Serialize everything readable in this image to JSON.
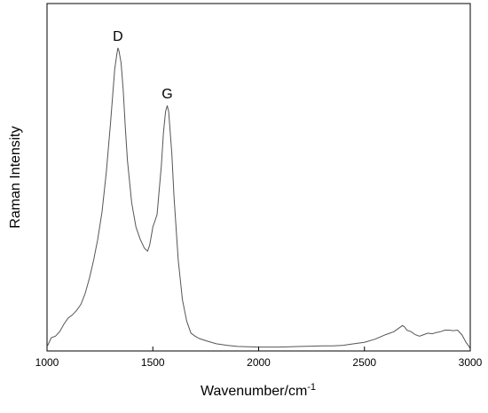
{
  "chart_data": {
    "type": "line",
    "title": "",
    "xlabel": "Wavenumber/cm",
    "xlabel_superscript": "-1",
    "ylabel": "Raman Intensity",
    "xlim": [
      1000,
      3000
    ],
    "ylim": [
      0,
      1.0
    ],
    "x_ticks": [
      1000,
      1500,
      2000,
      2500,
      3000
    ],
    "x_tick_labels": [
      "1000",
      "1500",
      "2000",
      "2500",
      "3000"
    ],
    "y_ticks_labeled": false,
    "grid": false,
    "line_color": "#555555",
    "annotations": [
      {
        "text": "D",
        "x": 1335,
        "y": 0.99
      },
      {
        "text": "G",
        "x": 1568,
        "y": 0.8
      }
    ],
    "series": [
      {
        "x": [
          1000,
          1020,
          1040,
          1060,
          1080,
          1100,
          1120,
          1140,
          1160,
          1180,
          1200,
          1220,
          1240,
          1260,
          1280,
          1300,
          1310,
          1320,
          1330,
          1335,
          1340,
          1350,
          1360,
          1370,
          1380,
          1400,
          1420,
          1440,
          1460,
          1475,
          1485,
          1500,
          1520,
          1540,
          1550,
          1560,
          1568,
          1575,
          1590,
          1600,
          1620,
          1640,
          1660,
          1680,
          1700,
          1720,
          1750,
          1800,
          1850,
          1900,
          1950,
          2000,
          2050,
          2100,
          2150,
          2200,
          2250,
          2300,
          2350,
          2400,
          2450,
          2500,
          2550,
          2600,
          2640,
          2660,
          2680,
          2690,
          2700,
          2720,
          2740,
          2760,
          2780,
          2800,
          2820,
          2840,
          2860,
          2880,
          2900,
          2920,
          2940,
          2960,
          2980,
          3000
        ],
        "y": [
          0.005,
          0.035,
          0.04,
          0.055,
          0.08,
          0.1,
          0.11,
          0.125,
          0.145,
          0.18,
          0.23,
          0.29,
          0.36,
          0.45,
          0.58,
          0.74,
          0.83,
          0.92,
          0.97,
          0.99,
          0.98,
          0.94,
          0.85,
          0.73,
          0.62,
          0.48,
          0.4,
          0.36,
          0.33,
          0.32,
          0.34,
          0.4,
          0.44,
          0.6,
          0.71,
          0.78,
          0.8,
          0.78,
          0.64,
          0.5,
          0.29,
          0.16,
          0.09,
          0.05,
          0.04,
          0.032,
          0.025,
          0.015,
          0.01,
          0.006,
          0.005,
          0.004,
          0.004,
          0.004,
          0.005,
          0.006,
          0.007,
          0.008,
          0.008,
          0.01,
          0.015,
          0.02,
          0.03,
          0.045,
          0.055,
          0.065,
          0.075,
          0.07,
          0.06,
          0.055,
          0.045,
          0.04,
          0.045,
          0.05,
          0.048,
          0.052,
          0.055,
          0.06,
          0.06,
          0.058,
          0.06,
          0.045,
          0.02,
          0.0
        ]
      }
    ]
  }
}
